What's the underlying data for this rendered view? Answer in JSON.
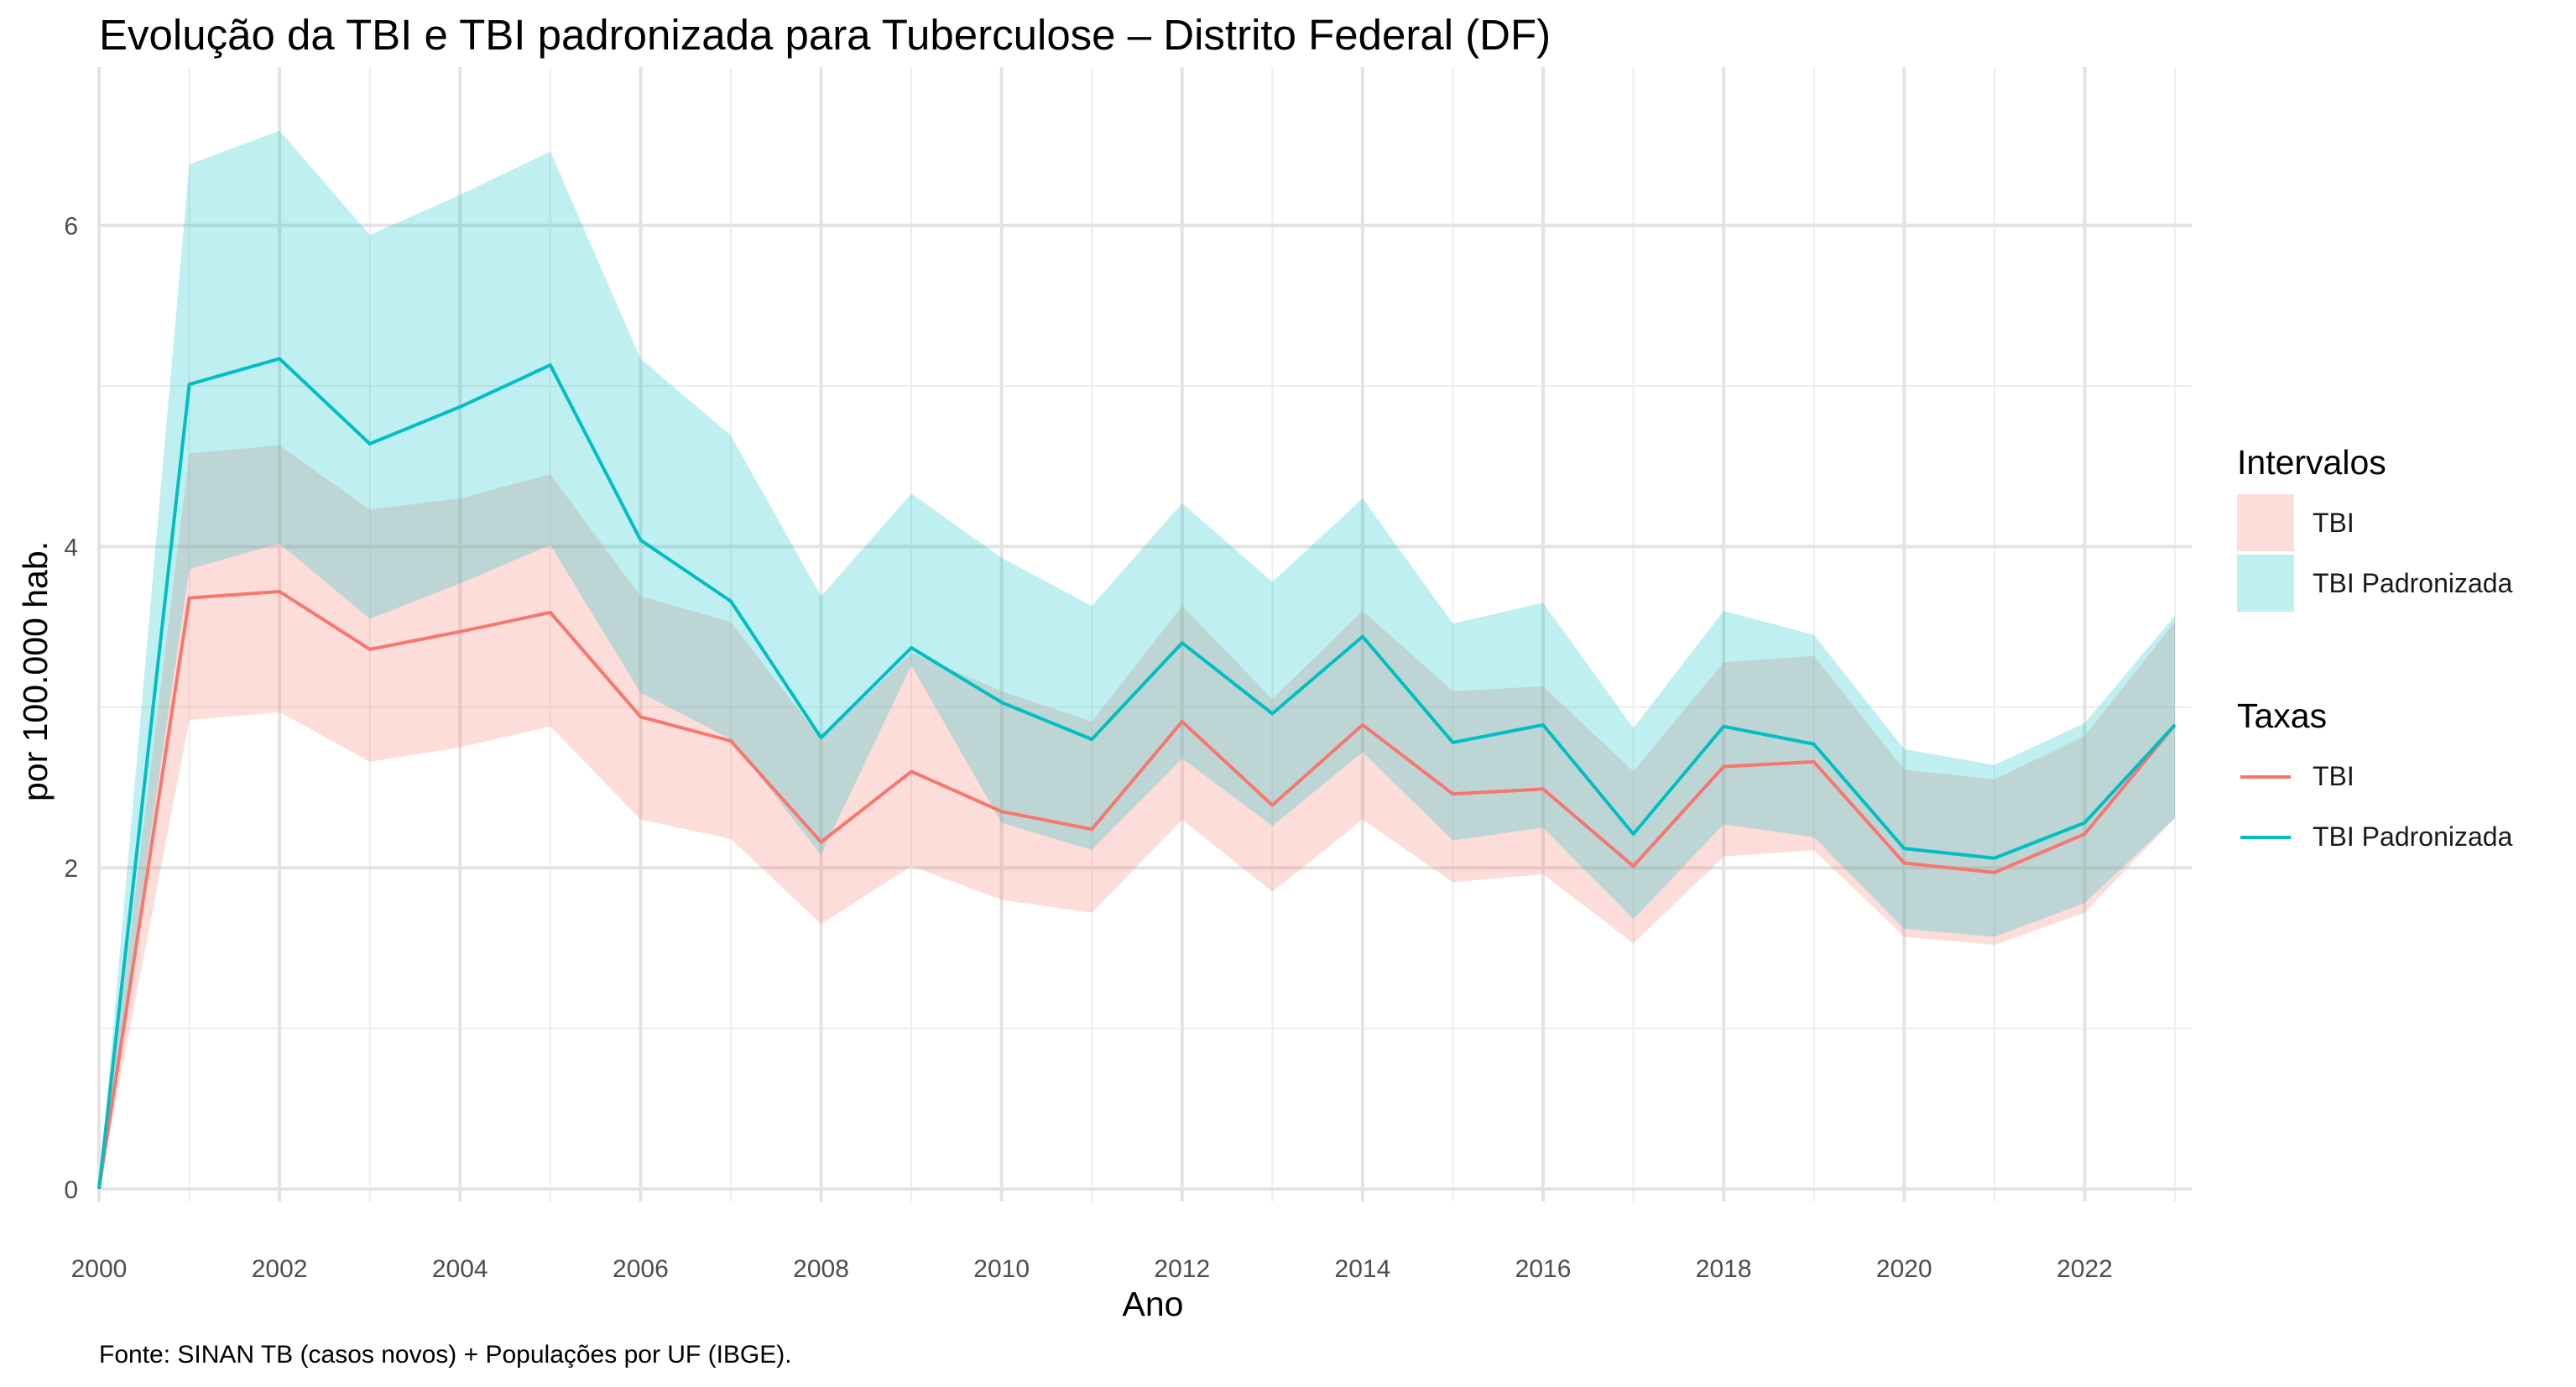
{
  "title": "Evolução da TBI e TBI padronizada para Tuberculose – Distrito Federal (DF)",
  "caption": "Fonte: SINAN TB (casos novos) + Populações por UF (IBGE).",
  "legend_intervals": {
    "title": "Intervalos",
    "items": [
      {
        "label": "TBI",
        "color": "#F8766D"
      },
      {
        "label": "TBI Padronizada",
        "color": "#00BFC4"
      }
    ]
  },
  "legend_rates": {
    "title": "Taxas",
    "items": [
      {
        "label": "TBI",
        "color": "#F8766D"
      },
      {
        "label": "TBI Padronizada",
        "color": "#00BFC4"
      }
    ]
  },
  "chart_data": {
    "type": "line",
    "xlabel": "Ano",
    "ylabel": "por 100.000 hab.",
    "xlim": [
      2000,
      2023
    ],
    "ylim": [
      0,
      6.8
    ],
    "x_ticks": [
      2000,
      2002,
      2004,
      2006,
      2008,
      2010,
      2012,
      2014,
      2016,
      2018,
      2020,
      2022
    ],
    "y_ticks": [
      0,
      2,
      4,
      6
    ],
    "grid": true,
    "legend_position": "right",
    "x": [
      2000,
      2001,
      2002,
      2003,
      2004,
      2005,
      2006,
      2007,
      2008,
      2009,
      2010,
      2011,
      2012,
      2013,
      2014,
      2015,
      2016,
      2017,
      2018,
      2019,
      2020,
      2021,
      2022,
      2023
    ],
    "series": [
      {
        "name": "TBI",
        "color": "#F8766D",
        "values": [
          0.0,
          3.68,
          3.72,
          3.36,
          3.47,
          3.59,
          2.94,
          2.79,
          2.16,
          2.6,
          2.35,
          2.24,
          2.91,
          2.39,
          2.89,
          2.46,
          2.49,
          2.01,
          2.63,
          2.66,
          2.03,
          1.97,
          2.21,
          2.89
        ],
        "lower": [
          0.0,
          2.92,
          2.97,
          2.66,
          2.75,
          2.88,
          2.3,
          2.18,
          1.65,
          2.01,
          1.8,
          1.72,
          2.3,
          1.85,
          2.3,
          1.91,
          1.96,
          1.53,
          2.07,
          2.11,
          1.57,
          1.52,
          1.72,
          2.31
        ],
        "upper": [
          0.0,
          3.86,
          4.02,
          3.55,
          3.77,
          4.01,
          3.09,
          2.8,
          2.08,
          3.26,
          2.28,
          2.11,
          2.68,
          2.26,
          2.72,
          2.17,
          2.25,
          1.68,
          2.27,
          2.19,
          1.62,
          1.57,
          1.78,
          2.31
        ]
      },
      {
        "name": "TBI Padronizada",
        "color": "#00BFC4",
        "values": [
          0.0,
          5.01,
          5.17,
          4.64,
          4.87,
          5.13,
          4.04,
          3.66,
          2.81,
          3.37,
          3.03,
          2.8,
          3.4,
          2.96,
          3.44,
          2.78,
          2.89,
          2.21,
          2.88,
          2.77,
          2.12,
          2.06,
          2.28,
          2.89
        ],
        "lower": [
          0.0,
          3.86,
          4.02,
          3.55,
          3.77,
          4.01,
          3.09,
          2.8,
          2.08,
          3.26,
          2.28,
          2.11,
          2.68,
          2.26,
          2.72,
          2.17,
          2.25,
          1.68,
          2.27,
          2.19,
          1.62,
          1.57,
          1.78,
          2.31
        ],
        "upper": [
          0.0,
          6.38,
          6.59,
          5.94,
          6.19,
          6.46,
          5.17,
          4.69,
          3.69,
          4.33,
          3.93,
          3.63,
          4.27,
          3.78,
          4.3,
          3.52,
          3.65,
          2.87,
          3.6,
          3.45,
          2.74,
          2.64,
          2.9,
          3.57
        ],
        "overlap_upper": [
          0.0,
          4.58,
          4.63,
          4.23,
          4.3,
          4.45,
          3.69,
          3.53,
          2.8,
          3.34,
          3.1,
          2.91,
          3.63,
          3.05,
          3.6,
          3.1,
          3.13,
          2.6,
          3.28,
          3.32,
          2.61,
          2.55,
          2.82,
          3.53
        ]
      }
    ]
  }
}
